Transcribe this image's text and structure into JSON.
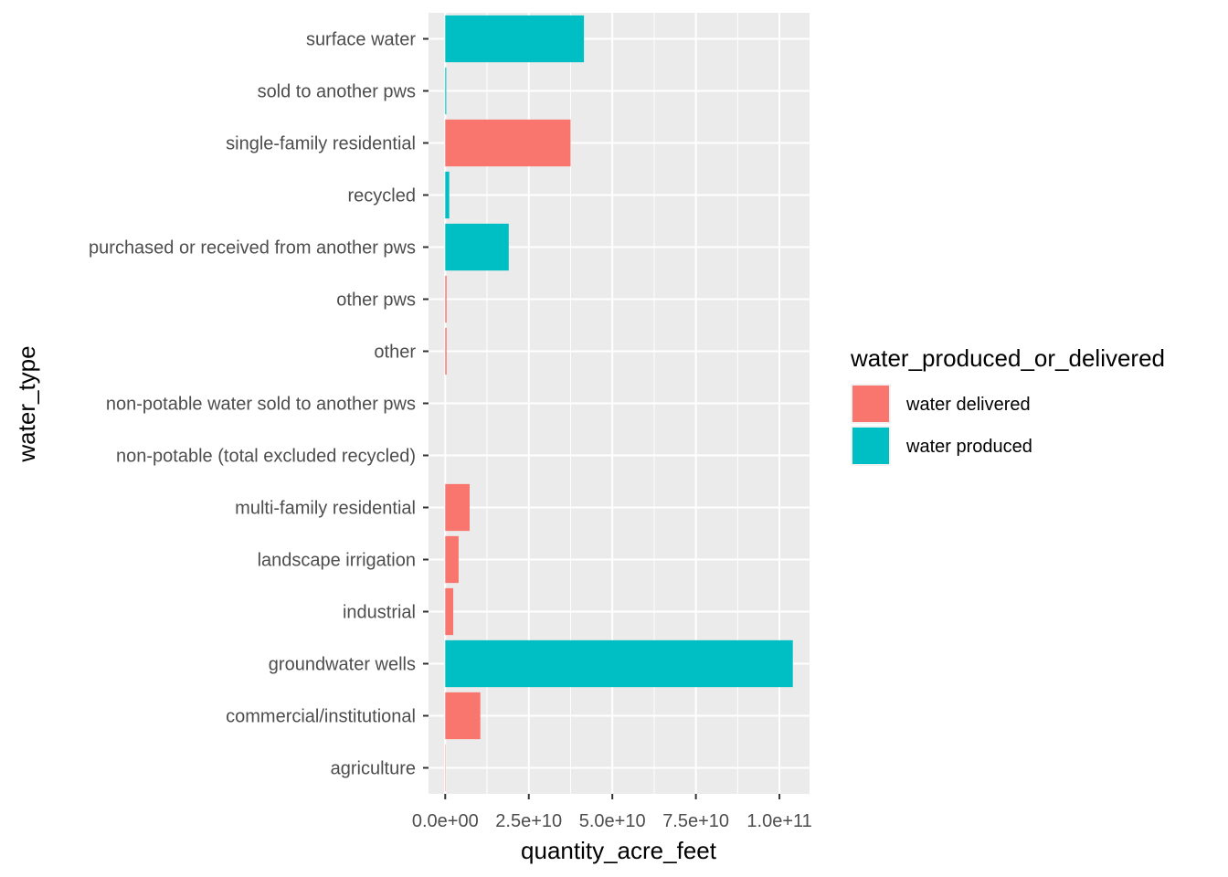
{
  "chart_data": {
    "type": "bar",
    "orientation": "horizontal",
    "xlabel": "quantity_acre_feet",
    "ylabel": "water_type",
    "xlim": [
      -5000000000,
      109000000000
    ],
    "x_ticks": [
      {
        "value": 0,
        "label": "0.0e+00"
      },
      {
        "value": 25000000000,
        "label": "2.5e+10"
      },
      {
        "value": 50000000000,
        "label": "5.0e+10"
      },
      {
        "value": 75000000000,
        "label": "7.5e+10"
      },
      {
        "value": 100000000000,
        "label": "1.0e+11"
      }
    ],
    "grid": true,
    "categories": [
      "surface water",
      "sold to another pws",
      "single-family residential",
      "recycled",
      "purchased or received from another pws",
      "other pws",
      "other",
      "non-potable water sold to another pws",
      "non-potable (total excluded recycled)",
      "multi-family residential",
      "landscape irrigation",
      "industrial",
      "groundwater wells",
      "commercial/institutional",
      "agriculture"
    ],
    "bars": [
      {
        "category": "surface water",
        "series": "water produced",
        "value": 41500000000
      },
      {
        "category": "sold to another pws",
        "series": "water produced",
        "value": 300000000
      },
      {
        "category": "single-family residential",
        "series": "water delivered",
        "value": 37500000000
      },
      {
        "category": "recycled",
        "series": "water produced",
        "value": 1200000000
      },
      {
        "category": "purchased or received from another pws",
        "series": "water produced",
        "value": 19000000000
      },
      {
        "category": "other pws",
        "series": "water delivered",
        "value": 400000000
      },
      {
        "category": "other",
        "series": "water delivered",
        "value": 400000000
      },
      {
        "category": "non-potable water sold to another pws",
        "series": "water delivered",
        "value": 0
      },
      {
        "category": "non-potable (total excluded recycled)",
        "series": "water delivered",
        "value": 0
      },
      {
        "category": "multi-family residential",
        "series": "water delivered",
        "value": 7300000000
      },
      {
        "category": "landscape irrigation",
        "series": "water delivered",
        "value": 4000000000
      },
      {
        "category": "industrial",
        "series": "water delivered",
        "value": 2400000000
      },
      {
        "category": "groundwater wells",
        "series": "water produced",
        "value": 104000000000
      },
      {
        "category": "commercial/institutional",
        "series": "water delivered",
        "value": 10500000000
      },
      {
        "category": "agriculture",
        "series": "water delivered",
        "value": 100000000
      }
    ],
    "legend": {
      "title": "water_produced_or_delivered",
      "position": "right",
      "items": [
        {
          "label": "water delivered",
          "color": "#F8766D"
        },
        {
          "label": "water produced",
          "color": "#00BFC4"
        }
      ]
    }
  }
}
